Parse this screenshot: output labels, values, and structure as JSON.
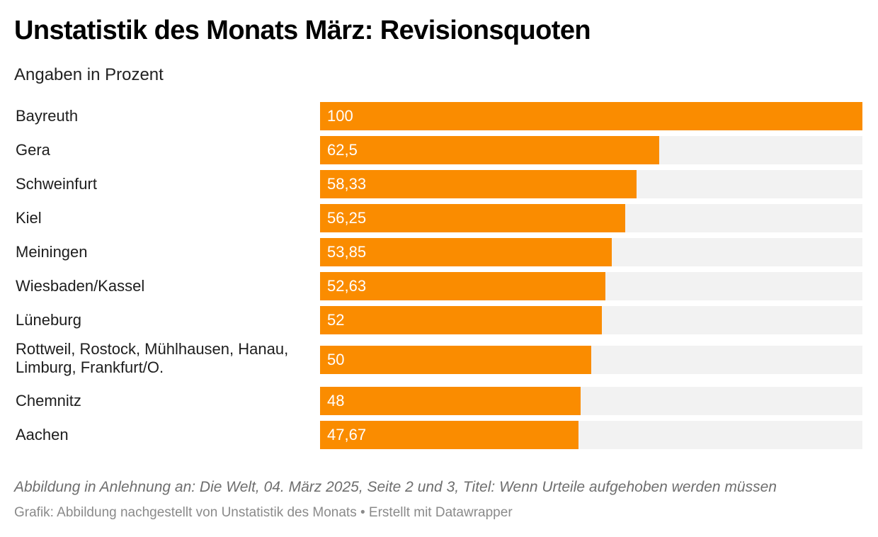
{
  "chart_data": {
    "type": "bar",
    "orientation": "horizontal",
    "title": "Unstatistik des Monats März: Revisionsquoten",
    "subtitle": "Angaben in Prozent",
    "xlabel": "",
    "ylabel": "",
    "xlim": [
      0,
      100
    ],
    "grid": false,
    "categories": [
      "Bayreuth",
      "Gera",
      "Schweinfurt",
      "Kiel",
      "Meiningen",
      "Wiesbaden/Kassel",
      "Lüneburg",
      "Rottweil, Rostock, Mühlhausen, Hanau, Limburg, Frankfurt/O.",
      "Chemnitz",
      "Aachen"
    ],
    "values": [
      100,
      62.5,
      58.33,
      56.25,
      53.85,
      52.63,
      52,
      50,
      48,
      47.67
    ],
    "value_labels": [
      "100",
      "62,5",
      "58,33",
      "56,25",
      "53,85",
      "52,63",
      "52",
      "50",
      "48",
      "47,67"
    ],
    "colors": {
      "bar": "#fa8c00",
      "background_bar": "#f2f2f2",
      "value_text": "#ffffff"
    },
    "notes": "Abbildung in Anlehnung an: Die Welt, 04. März 2025, Seite 2 und 3, Titel: Wenn Urteile aufgehoben werden müssen",
    "footer": "Grafik: Abbildung nachgestellt von Unstatistik des Monats • Erstellt mit Datawrapper"
  }
}
